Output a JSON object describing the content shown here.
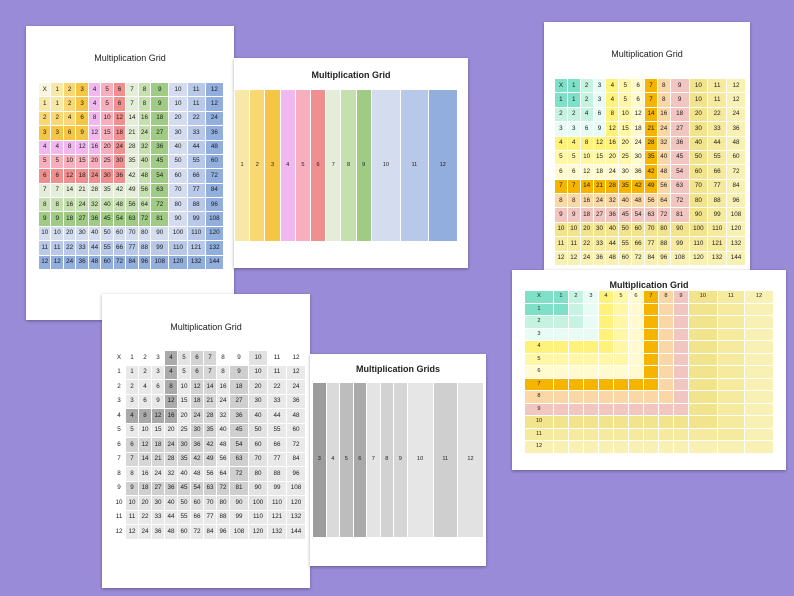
{
  "pages": [
    {
      "id": "rainbow-full",
      "title": "Multiplication Grid",
      "corner": "X",
      "filled": true,
      "labels": "both",
      "theme": "rainbow"
    },
    {
      "id": "rainbow-blank",
      "title": "Multiplication Grid",
      "filled": false,
      "labels": "top",
      "theme": "rainbow"
    },
    {
      "id": "sunny-full",
      "title": "Multiplication Grid",
      "corner": "X",
      "filled": true,
      "labels": "both",
      "theme": "sunny"
    },
    {
      "id": "sunny-blank",
      "title": "Multiplication Grid",
      "corner": "X",
      "filled": false,
      "labels": "both",
      "theme": "sunny"
    },
    {
      "id": "gray-full",
      "title": "Multiplication Grid",
      "corner": "X",
      "filled": true,
      "labels": "both",
      "theme": "gray"
    },
    {
      "id": "gray-blank",
      "title": "Multiplication Grids",
      "filled": false,
      "labels": "top-partial",
      "theme": "gray",
      "top_labels_from": 3
    }
  ],
  "colors": {
    "background": "#9a8bd8",
    "rainbow": [
      "#f7e8a8",
      "#f9d873",
      "#f5c545",
      "#f0b8ee",
      "#f7aebd",
      "#ef8f8f",
      "#e4edd8",
      "#c6dfae",
      "#9fcb84",
      "#d4dcef",
      "#b8c8e8",
      "#92aedd"
    ],
    "sunny": [
      "#7fe0c8",
      "#c6f2e2",
      "#e8fbf4",
      "#fff27a",
      "#fff6a6",
      "#fffad0",
      "#f4b400",
      "#fad7a4",
      "#f2c6c0",
      "#f2e38d",
      "#f6ea9e",
      "#f9f0b4"
    ],
    "gray": [
      "#d6d6d6",
      "#e6e6e6",
      "#cfcfcf",
      "#e2e2e2",
      "#cbcbcb",
      "#dedede",
      "#9d9d9d",
      "#dadada",
      "#bdbdbd",
      "#aaaaaa",
      "#e4e4e4",
      "#d2d2d2"
    ]
  }
}
